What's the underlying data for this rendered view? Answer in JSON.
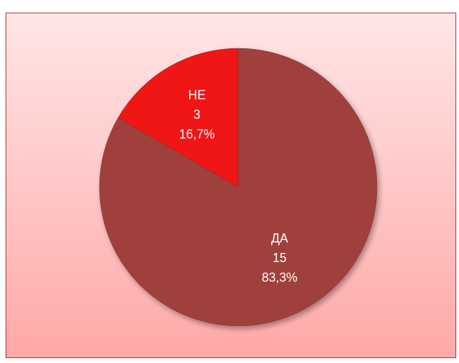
{
  "chart_data": {
    "type": "pie",
    "categories": [
      "ДА",
      "НЕ"
    ],
    "values": [
      15,
      3
    ],
    "percent_labels": [
      "83,3%",
      "16,7%"
    ],
    "colors": [
      "#a0403c",
      "#f01818"
    ]
  }
}
